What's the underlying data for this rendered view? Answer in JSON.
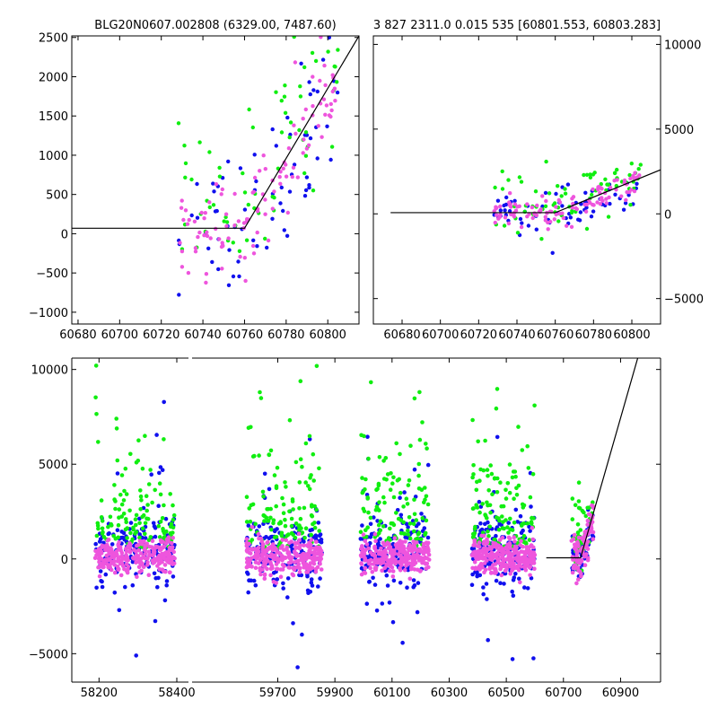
{
  "titles": {
    "left": "BLG20N0607.002808 (6329.00, 7487.60)",
    "right": "3 827 2311.0 0.015 535 [60801.553, 60803.283]"
  },
  "colors": {
    "blue": "#1010ee",
    "green": "#10ee10",
    "magenta": "#ee55dd"
  },
  "chart_data": [
    {
      "id": "zoom_left",
      "type": "scatter",
      "xlim": [
        60677,
        60815
      ],
      "ylim": [
        -1150,
        2520
      ],
      "xticks": [
        60680,
        60700,
        60720,
        60740,
        60760,
        60780,
        60800
      ],
      "yticks": [
        -1000,
        -500,
        0,
        500,
        1000,
        1500,
        2000,
        2500
      ],
      "xtick_labels": [
        "60680",
        "60700",
        "60720",
        "60740",
        "60760",
        "60780",
        "60800"
      ],
      "ytick_labels": [
        "−1000",
        "−500",
        "0",
        "500",
        "1000",
        "1500",
        "2000",
        "2500"
      ],
      "ytick_side": "left",
      "model": [
        [
          60677,
          70
        ],
        [
          60760,
          70
        ],
        [
          60815,
          2520
        ]
      ],
      "series": [
        {
          "name": "blue",
          "n": 70,
          "x": [
            60728,
            60805
          ]
        },
        {
          "name": "green",
          "n": 70,
          "x": [
            60728,
            60805
          ]
        },
        {
          "name": "magenta",
          "n": 110,
          "x": [
            60728,
            60805
          ]
        }
      ]
    },
    {
      "id": "zoom_right",
      "type": "scatter",
      "xlim": [
        60665,
        60815
      ],
      "ylim": [
        -6500,
        10500
      ],
      "xticks": [
        60680,
        60700,
        60720,
        60740,
        60760,
        60780,
        60800
      ],
      "yticks": [
        -5000,
        0,
        5000,
        10000
      ],
      "xtick_labels": [
        "60680",
        "60700",
        "60720",
        "60740",
        "60760",
        "60780",
        "60800"
      ],
      "ytick_labels": [
        "−5000",
        "0",
        "5000",
        "10000"
      ],
      "ytick_side": "right",
      "model": [
        [
          60674,
          70
        ],
        [
          60760,
          70
        ],
        [
          60815,
          2600
        ]
      ],
      "series": [
        {
          "name": "blue",
          "n": 70,
          "x": [
            60728,
            60805
          ]
        },
        {
          "name": "green",
          "n": 70,
          "x": [
            60728,
            60805
          ]
        },
        {
          "name": "magenta",
          "n": 110,
          "x": [
            60728,
            60805
          ]
        }
      ]
    },
    {
      "id": "full_lightcurve",
      "type": "scatter",
      "ylim": [
        -6500,
        10600
      ],
      "yticks": [
        -5000,
        0,
        5000,
        10000
      ],
      "ytick_labels": [
        "−5000",
        "0",
        "5000",
        "10000"
      ],
      "ytick_side": "left",
      "segments": [
        {
          "xlim": [
            58130,
            58430
          ],
          "xticks": [
            58200,
            58400
          ],
          "xtick_labels": [
            "58200",
            "58400"
          ]
        },
        {
          "xlim": [
            59400,
            61040
          ],
          "xticks": [
            59700,
            59900,
            60100,
            60300,
            60500,
            60700,
            60900
          ],
          "xtick_labels": [
            "59700",
            "59900",
            "60100",
            "60300",
            "60500",
            "60700",
            "60900"
          ]
        }
      ],
      "seasons": [
        [
          58190,
          58395
        ],
        [
          59590,
          59855
        ],
        [
          59990,
          60230
        ],
        [
          60380,
          60600
        ],
        [
          60728,
          60805
        ]
      ],
      "model": [
        [
          60640,
          60
        ],
        [
          60760,
          60
        ],
        [
          60960,
          10600
        ]
      ],
      "series": [
        {
          "name": "blue",
          "n_per_season": 170
        },
        {
          "name": "green",
          "n_per_season": 120
        },
        {
          "name": "magenta",
          "n_per_season": 260
        }
      ]
    }
  ]
}
